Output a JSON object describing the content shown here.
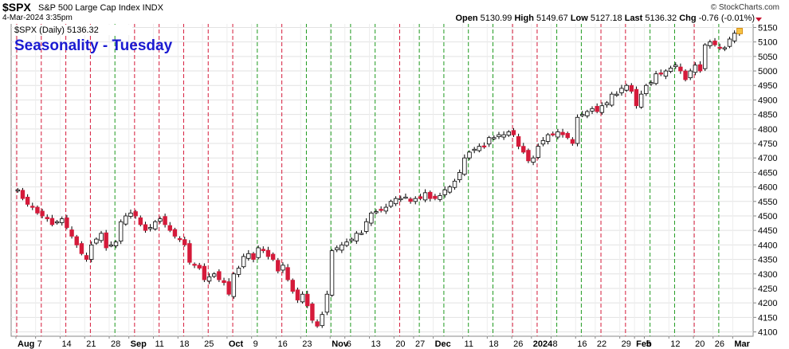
{
  "header": {
    "symbol": "$SPX",
    "description": "S&P 500 Large Cap Index  INDX",
    "date": "4-Mar-2024 3:35pm",
    "credit": "© StockCharts.com",
    "open_label": "Open",
    "open": "5130.99",
    "high_label": "High",
    "high": "5149.67",
    "low_label": "Low",
    "low": "5127.18",
    "last_label": "Last",
    "last": "5136.32",
    "chg_label": "Chg",
    "chg": "-0.76 (-0.01%)"
  },
  "legend": {
    "label": "$SPX (Daily) 5136.32"
  },
  "colors": {
    "up": "#ffffff",
    "down": "#d51a3a",
    "green_line": "#1f9a1f",
    "red_line": "#d51a3a",
    "title": "#1a1ad1"
  },
  "chart_data": {
    "type": "candlestick",
    "title": "Seasonality - Tuesday",
    "ylim": [
      4085,
      5165
    ],
    "y_ticks": [
      4100,
      4150,
      4200,
      4250,
      4300,
      4350,
      4400,
      4450,
      4500,
      4550,
      4600,
      4650,
      4700,
      4750,
      4800,
      4850,
      4900,
      4950,
      5000,
      5050,
      5100,
      5150
    ],
    "x_ticks": [
      {
        "label": "Aug",
        "day": 0,
        "bold": true
      },
      {
        "label": "7",
        "day": 4,
        "bold": false
      },
      {
        "label": "14",
        "day": 9,
        "bold": false
      },
      {
        "label": "21",
        "day": 14,
        "bold": false
      },
      {
        "label": "28",
        "day": 19,
        "bold": false
      },
      {
        "label": "Sep",
        "day": 23,
        "bold": true
      },
      {
        "label": "11",
        "day": 28,
        "bold": false
      },
      {
        "label": "18",
        "day": 33,
        "bold": false
      },
      {
        "label": "25",
        "day": 38,
        "bold": false
      },
      {
        "label": "Oct",
        "day": 43,
        "bold": true
      },
      {
        "label": "9",
        "day": 48,
        "bold": false
      },
      {
        "label": "16",
        "day": 53,
        "bold": false
      },
      {
        "label": "23",
        "day": 58,
        "bold": false
      },
      {
        "label": "Nov",
        "day": 64,
        "bold": true
      },
      {
        "label": "6",
        "day": 67,
        "bold": false
      },
      {
        "label": "13",
        "day": 72,
        "bold": false
      },
      {
        "label": "20",
        "day": 77,
        "bold": false
      },
      {
        "label": "27",
        "day": 81,
        "bold": false
      },
      {
        "label": "Dec",
        "day": 85,
        "bold": true
      },
      {
        "label": "11",
        "day": 91,
        "bold": false
      },
      {
        "label": "18",
        "day": 96,
        "bold": false
      },
      {
        "label": "26",
        "day": 101,
        "bold": false
      },
      {
        "label": "2024",
        "day": 105,
        "bold": true
      },
      {
        "label": "8",
        "day": 109,
        "bold": false
      },
      {
        "label": "16",
        "day": 114,
        "bold": false
      },
      {
        "label": "22",
        "day": 118,
        "bold": false
      },
      {
        "label": "29",
        "day": 123,
        "bold": false
      },
      {
        "label": "Feb",
        "day": 126,
        "bold": true
      },
      {
        "label": "5",
        "day": 128,
        "bold": false
      },
      {
        "label": "12",
        "day": 133,
        "bold": false
      },
      {
        "label": "20",
        "day": 138,
        "bold": false
      },
      {
        "label": "26",
        "day": 142,
        "bold": false
      },
      {
        "label": "Mar",
        "day": 146,
        "bold": true
      }
    ],
    "tuesday_lines": [
      {
        "day": 0,
        "color": "red"
      },
      {
        "day": 5,
        "color": "red"
      },
      {
        "day": 10,
        "color": "red"
      },
      {
        "day": 15,
        "color": "red"
      },
      {
        "day": 20,
        "color": "green"
      },
      {
        "day": 24,
        "color": "red"
      },
      {
        "day": 29,
        "color": "red"
      },
      {
        "day": 34,
        "color": "red"
      },
      {
        "day": 39,
        "color": "red"
      },
      {
        "day": 44,
        "color": "red"
      },
      {
        "day": 49,
        "color": "green"
      },
      {
        "day": 54,
        "color": "red"
      },
      {
        "day": 59,
        "color": "green"
      },
      {
        "day": 64,
        "color": "green"
      },
      {
        "day": 68,
        "color": "green"
      },
      {
        "day": 73,
        "color": "green"
      },
      {
        "day": 78,
        "color": "red"
      },
      {
        "day": 82,
        "color": "green"
      },
      {
        "day": 87,
        "color": "green"
      },
      {
        "day": 92,
        "color": "green"
      },
      {
        "day": 97,
        "color": "green"
      },
      {
        "day": 101,
        "color": "red"
      },
      {
        "day": 106,
        "color": "red"
      },
      {
        "day": 110,
        "color": "green"
      },
      {
        "day": 115,
        "color": "green"
      },
      {
        "day": 119,
        "color": "red"
      },
      {
        "day": 124,
        "color": "red"
      },
      {
        "day": 129,
        "color": "green"
      },
      {
        "day": 134,
        "color": "green"
      },
      {
        "day": 138,
        "color": "red"
      },
      {
        "day": 143,
        "color": "green"
      }
    ],
    "closes": [
      4590,
      4560,
      4540,
      4530,
      4510,
      4500,
      4490,
      4470,
      4480,
      4490,
      4460,
      4430,
      4400,
      4370,
      4350,
      4400,
      4420,
      4440,
      4390,
      4400,
      4410,
      4480,
      4500,
      4510,
      4500,
      4470,
      4450,
      4460,
      4480,
      4490,
      4470,
      4450,
      4430,
      4420,
      4400,
      4340,
      4330,
      4320,
      4280,
      4290,
      4300,
      4280,
      4270,
      4230,
      4300,
      4320,
      4360,
      4370,
      4350,
      4390,
      4380,
      4360,
      4350,
      4310,
      4330,
      4280,
      4240,
      4210,
      4230,
      4190,
      4140,
      4120,
      4160,
      4230,
      4380,
      4390,
      4400,
      4410,
      4420,
      4440,
      4440,
      4480,
      4510,
      4515,
      4520,
      4530,
      4550,
      4560,
      4560,
      4565,
      4550,
      4560,
      4560,
      4580,
      4560,
      4560,
      4570,
      4590,
      4600,
      4620,
      4650,
      4700,
      4720,
      4730,
      4740,
      4740,
      4770,
      4770,
      4780,
      4780,
      4790,
      4780,
      4740,
      4720,
      4690,
      4700,
      4740,
      4760,
      4780,
      4780,
      4790,
      4780,
      4770,
      4750,
      4840,
      4850,
      4860,
      4870,
      4860,
      4880,
      4890,
      4920,
      4920,
      4940,
      4950,
      4930,
      4880,
      4920,
      4950,
      4960,
      4990,
      4990,
      5000,
      5010,
      5020,
      5000,
      4970,
      5000,
      5020,
      5000,
      5090,
      5100,
      5090,
      5080,
      5080,
      5110,
      5130,
      5136
    ],
    "last_value": 5136.32
  }
}
